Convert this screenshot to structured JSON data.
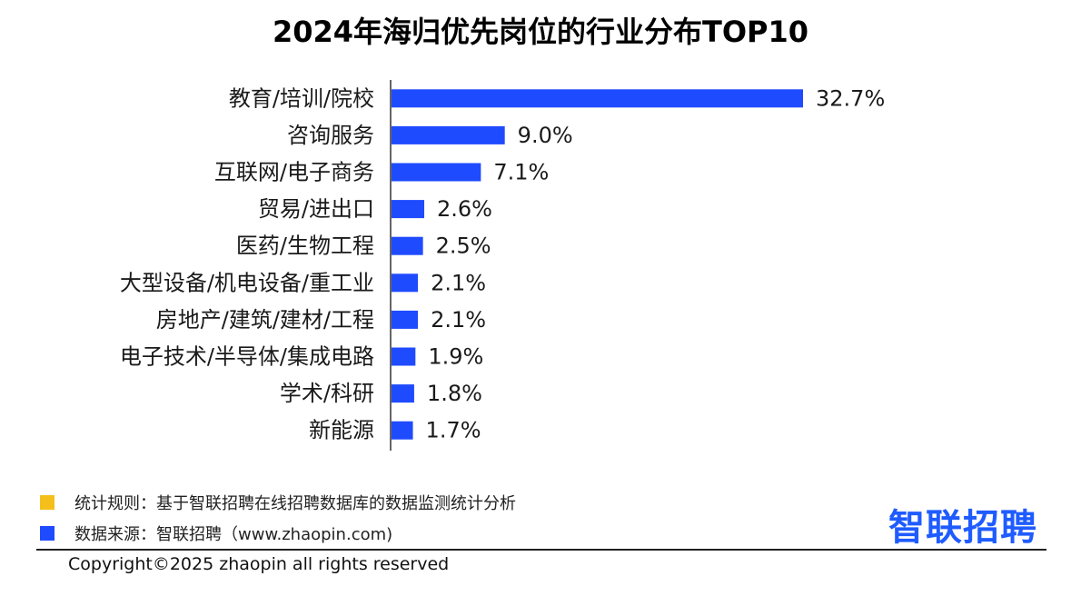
{
  "title": "2024年海归优先岗位的行业分布TOP10",
  "colors": {
    "bar": "#1f4bff",
    "rule_square": "#f5bf1b",
    "source_square": "#1f4bff",
    "brand": "#1f5cff"
  },
  "chart_data": {
    "type": "bar",
    "orientation": "horizontal",
    "title": "2024年海归优先岗位的行业分布TOP10",
    "categories": [
      "教育/培训/院校",
      "咨询服务",
      "互联网/电子商务",
      "贸易/进出口",
      "医药/生物工程",
      "大型设备/机电设备/重工业",
      "房地产/建筑/建材/工程",
      "电子技术/半导体/集成电路",
      "学术/科研",
      "新能源"
    ],
    "values": [
      32.7,
      9.0,
      7.1,
      2.6,
      2.5,
      2.1,
      2.1,
      1.9,
      1.8,
      1.7
    ],
    "value_labels": [
      "32.7%",
      "9.0%",
      "7.1%",
      "2.6%",
      "2.5%",
      "2.1%",
      "2.1%",
      "1.9%",
      "1.8%",
      "1.7%"
    ],
    "unit": "%",
    "xlim": [
      0,
      32.7
    ],
    "grid": false
  },
  "notes": {
    "rule": "统计规则：基于智联招聘在线招聘数据库的数据监测统计分析",
    "source": "数据来源：智联招聘（www.zhaopin.com)"
  },
  "brand": "智联招聘",
  "copyright": "Copyright©2025 zhaopin all rights reserved"
}
